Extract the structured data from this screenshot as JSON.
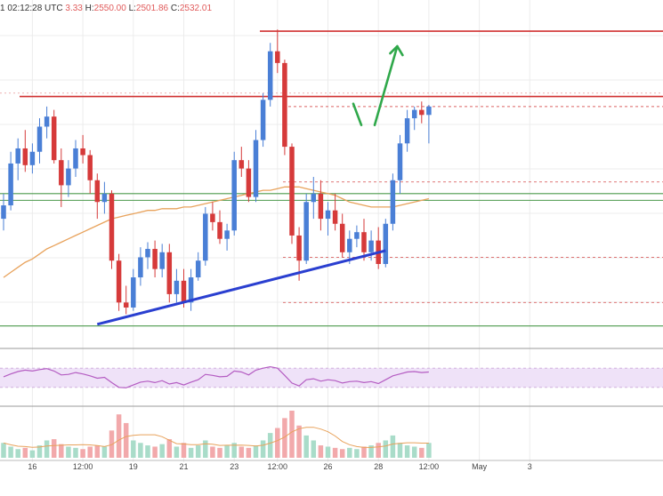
{
  "header": {
    "time_text": "1 02:12:28 UTC",
    "open_text": "3.33",
    "high_label": "H:",
    "high_text": "2550.00",
    "low_label": "L:",
    "low_text": "2501.86",
    "close_label": "C:",
    "close_text": "2532.01"
  },
  "colors": {
    "bull": "#4a7fd6",
    "bear": "#d63a3a",
    "ma": "#e8a25b",
    "support": "#2a3fd0",
    "resistance": "#d03030",
    "horizontal_support": "#4c9a4c",
    "arrow": "#2fa84a",
    "rsi": "#b45cc2",
    "rsi_band": "#efe2f8",
    "vol_bull": "#a9dcc9",
    "vol_bear": "#f2a9ab",
    "grid": "#ececec"
  },
  "chart_data": {
    "type": "candlestick",
    "ylim": [
      2385,
      2575
    ],
    "candles": [
      [
        2455,
        2470,
        2448,
        2463
      ],
      [
        2463,
        2495,
        2460,
        2488
      ],
      [
        2488,
        2503,
        2478,
        2497
      ],
      [
        2497,
        2508,
        2483,
        2487
      ],
      [
        2487,
        2500,
        2482,
        2495
      ],
      [
        2495,
        2515,
        2488,
        2510
      ],
      [
        2510,
        2522,
        2503,
        2516
      ],
      [
        2516,
        2520,
        2488,
        2490
      ],
      [
        2490,
        2497,
        2462,
        2475
      ],
      [
        2475,
        2490,
        2468,
        2485
      ],
      [
        2485,
        2502,
        2480,
        2497
      ],
      [
        2497,
        2505,
        2488,
        2493
      ],
      [
        2493,
        2496,
        2470,
        2478
      ],
      [
        2478,
        2482,
        2455,
        2465
      ],
      [
        2465,
        2477,
        2458,
        2470
      ],
      [
        2470,
        2472,
        2425,
        2430
      ],
      [
        2430,
        2434,
        2400,
        2405
      ],
      [
        2405,
        2415,
        2398,
        2402
      ],
      [
        2402,
        2425,
        2400,
        2420
      ],
      [
        2420,
        2438,
        2415,
        2432
      ],
      [
        2432,
        2441,
        2425,
        2437
      ],
      [
        2437,
        2442,
        2420,
        2425
      ],
      [
        2425,
        2440,
        2420,
        2435
      ],
      [
        2435,
        2440,
        2405,
        2410
      ],
      [
        2410,
        2425,
        2405,
        2418
      ],
      [
        2418,
        2425,
        2402,
        2405
      ],
      [
        2405,
        2425,
        2400,
        2420
      ],
      [
        2420,
        2435,
        2418,
        2430
      ],
      [
        2430,
        2462,
        2427,
        2458
      ],
      [
        2458,
        2465,
        2448,
        2453
      ],
      [
        2453,
        2460,
        2440,
        2443
      ],
      [
        2443,
        2452,
        2436,
        2448
      ],
      [
        2448,
        2495,
        2445,
        2490
      ],
      [
        2490,
        2498,
        2480,
        2485
      ],
      [
        2485,
        2490,
        2465,
        2468
      ],
      [
        2468,
        2508,
        2465,
        2502
      ],
      [
        2502,
        2530,
        2498,
        2526
      ],
      [
        2526,
        2560,
        2522,
        2555
      ],
      [
        2555,
        2568,
        2542,
        2548
      ],
      [
        2548,
        2550,
        2493,
        2498
      ],
      [
        2498,
        2500,
        2440,
        2445
      ],
      [
        2445,
        2450,
        2418,
        2430
      ],
      [
        2430,
        2470,
        2428,
        2465
      ],
      [
        2465,
        2480,
        2455,
        2470
      ],
      [
        2470,
        2478,
        2448,
        2455
      ],
      [
        2455,
        2465,
        2445,
        2460
      ],
      [
        2460,
        2470,
        2448,
        2452
      ],
      [
        2452,
        2458,
        2432,
        2435
      ],
      [
        2435,
        2448,
        2428,
        2443
      ],
      [
        2443,
        2451,
        2438,
        2447
      ],
      [
        2447,
        2455,
        2430,
        2435
      ],
      [
        2435,
        2448,
        2430,
        2442
      ],
      [
        2442,
        2450,
        2425,
        2428
      ],
      [
        2428,
        2455,
        2426,
        2452
      ],
      [
        2452,
        2482,
        2448,
        2478
      ],
      [
        2478,
        2505,
        2470,
        2500
      ],
      [
        2500,
        2520,
        2495,
        2515
      ],
      [
        2515,
        2522,
        2508,
        2520
      ],
      [
        2520,
        2525,
        2512,
        2517
      ],
      [
        2517,
        2523,
        2500,
        2522
      ]
    ],
    "moving_average": [
      2420,
      2423,
      2426,
      2429,
      2431,
      2434,
      2437,
      2439,
      2441,
      2443,
      2445,
      2447,
      2449,
      2451,
      2453,
      2455,
      2456,
      2457,
      2458,
      2459,
      2460,
      2460,
      2461,
      2461,
      2461,
      2462,
      2462,
      2463,
      2464,
      2465,
      2466,
      2467,
      2468,
      2469,
      2470,
      2471,
      2472,
      2472,
      2473,
      2474,
      2474,
      2474,
      2473,
      2472,
      2471,
      2470,
      2469,
      2467,
      2465,
      2464,
      2463,
      2462,
      2462,
      2462,
      2462,
      2463,
      2464,
      2465,
      2466,
      2467
    ],
    "rsi": [
      52,
      58,
      63,
      66,
      64,
      67,
      69,
      64,
      56,
      57,
      61,
      58,
      54,
      49,
      51,
      40,
      30,
      29,
      35,
      41,
      43,
      40,
      44,
      37,
      40,
      35,
      41,
      46,
      57,
      55,
      52,
      53,
      64,
      62,
      56,
      66,
      70,
      73,
      70,
      55,
      39,
      33,
      46,
      48,
      43,
      46,
      44,
      39,
      42,
      43,
      40,
      42,
      38,
      46,
      54,
      58,
      62,
      63,
      61,
      62
    ],
    "volume": [
      12,
      9,
      7,
      8,
      6,
      10,
      14,
      15,
      11,
      9,
      8,
      7,
      9,
      10,
      9,
      22,
      35,
      28,
      14,
      12,
      10,
      9,
      11,
      15,
      9,
      12,
      8,
      10,
      14,
      9,
      8,
      10,
      12,
      9,
      8,
      10,
      14,
      20,
      24,
      32,
      38,
      26,
      18,
      14,
      10,
      9,
      8,
      7,
      8,
      7,
      9,
      10,
      12,
      14,
      18,
      12,
      10,
      9,
      8,
      12
    ],
    "x_tick_labels": [
      "16",
      "12:00",
      "19",
      "21",
      "23",
      "12:00",
      "26",
      "28",
      "12:00",
      "May",
      "3"
    ],
    "x_tick_positions": [
      4,
      11,
      18,
      25,
      32,
      38,
      45,
      52,
      59,
      66,
      73
    ],
    "resistance_levels": [
      2567,
      2528
    ],
    "support_levels": [
      2470,
      2466,
      2391
    ],
    "dashed_levels": [
      2522,
      2477,
      2432,
      2405
    ],
    "dashed_upper_level": 2530,
    "trendline": {
      "from": [
        13,
        2392
      ],
      "to": [
        53,
        2436
      ]
    },
    "forecast_arrow": {
      "from": [
        50,
        2512
      ],
      "to": [
        54,
        2558
      ]
    }
  }
}
